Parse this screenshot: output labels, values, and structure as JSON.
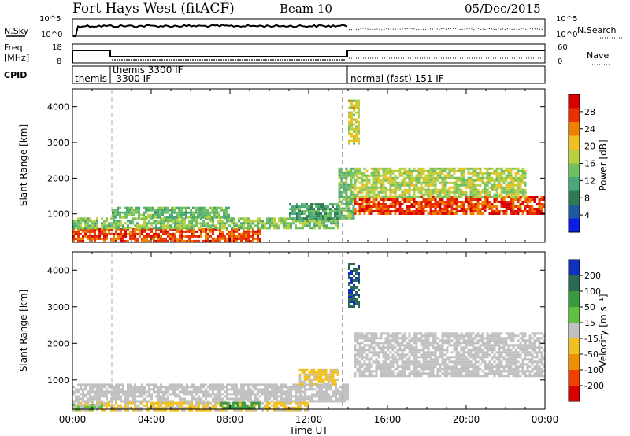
{
  "header": {
    "station": "Fort Hays West (fitACF)",
    "beam": "Beam 10",
    "date": "05/Dec/2015"
  },
  "noise_panel": {
    "left_label": "N.Sky",
    "right_label": "N.Search",
    "left_ticks": [
      "10^5",
      "10^0"
    ],
    "right_ticks": [
      "10^5",
      "10^0"
    ]
  },
  "freq_panel": {
    "left_label_line1": "Freq.",
    "left_label_line2": "[MHz]",
    "right_label": "Nave",
    "left_ticks": [
      "18",
      "8"
    ],
    "right_ticks": [
      "60",
      "0"
    ]
  },
  "cpid_panel": {
    "label": "CPID",
    "segments": [
      "themis",
      "themis 3300 IF",
      "-3300 IF",
      "normal (fast) 151 IF"
    ]
  },
  "power_panel": {
    "ylabel": "Slant Range [km]",
    "cbar_label": "Power [dB]",
    "cbar_ticks": [
      "28",
      "24",
      "20",
      "16",
      "12",
      "8",
      "4"
    ]
  },
  "velocity_panel": {
    "ylabel": "Slant Range [km]",
    "cbar_label": "Velocity [m s⁻¹]",
    "cbar_ticks": [
      "200",
      "100",
      "50",
      "15",
      "-15",
      "-50",
      "-100",
      "-200"
    ]
  },
  "x_axis": {
    "label": "Time UT",
    "ticks": [
      "00:00",
      "04:00",
      "08:00",
      "12:00",
      "16:00",
      "20:00",
      "00:00"
    ]
  },
  "colors": {
    "power_scale": [
      "#0a1ee6",
      "#1e5aa0",
      "#2d7a55",
      "#4aa878",
      "#70c060",
      "#b8d040",
      "#f0c020",
      "#f08000",
      "#e83000",
      "#d80000"
    ],
    "velocity_scale": [
      "#1030c0",
      "#2a6a50",
      "#3a9a40",
      "#60c040",
      "#c0c0c0",
      "#f0c020",
      "#f09000",
      "#f04000",
      "#d80000"
    ]
  },
  "chart_data": [
    {
      "type": "heatmap",
      "name": "power",
      "ylabel": "Slant Range [km]",
      "y_ticks": [
        "1000",
        "2000",
        "3000",
        "4000"
      ],
      "ylim": [
        200,
        4500
      ],
      "x_ticks": [
        "00:00",
        "04:00",
        "08:00",
        "12:00",
        "16:00",
        "20:00",
        "00:00"
      ],
      "xlim_hours": [
        0,
        24
      ],
      "colorbar": {
        "label": "Power [dB]",
        "ticks": [
          28,
          24,
          20,
          16,
          12,
          8,
          4
        ],
        "range": [
          0,
          30
        ]
      },
      "regions": [
        {
          "t0": 0.0,
          "t1": 9.5,
          "r0": 250,
          "r1": 600,
          "power": 26
        },
        {
          "t0": 0.0,
          "t1": 13.5,
          "r0": 600,
          "r1": 900,
          "power": 14
        },
        {
          "t0": 2.0,
          "t1": 8.0,
          "r0": 900,
          "r1": 1200,
          "power": 12
        },
        {
          "t0": 11.0,
          "t1": 13.5,
          "r0": 850,
          "r1": 1300,
          "power": 9
        },
        {
          "t0": 13.5,
          "t1": 14.3,
          "r0": 900,
          "r1": 2300,
          "power": 13
        },
        {
          "t0": 14.3,
          "t1": 24.0,
          "r0": 1000,
          "r1": 1500,
          "power": 27
        },
        {
          "t0": 14.3,
          "t1": 23.0,
          "r0": 1500,
          "r1": 2300,
          "power": 16
        },
        {
          "t0": 14.0,
          "t1": 14.5,
          "r0": 3000,
          "r1": 4200,
          "power": 18
        }
      ]
    },
    {
      "type": "heatmap",
      "name": "velocity",
      "ylabel": "Slant Range [km]",
      "y_ticks": [
        "1000",
        "2000",
        "3000",
        "4000"
      ],
      "ylim": [
        200,
        4500
      ],
      "x_ticks": [
        "00:00",
        "04:00",
        "08:00",
        "12:00",
        "16:00",
        "20:00",
        "00:00"
      ],
      "xlim_hours": [
        0,
        24
      ],
      "colorbar": {
        "label": "Velocity [m s⁻¹]",
        "ticks": [
          200,
          100,
          50,
          15,
          -15,
          -50,
          -100,
          -200
        ],
        "range": [
          -250,
          250
        ]
      },
      "regions": [
        {
          "t0": 0.0,
          "t1": 14.0,
          "r0": 400,
          "r1": 900,
          "velocity": 0
        },
        {
          "t0": 0.0,
          "t1": 12.0,
          "r0": 200,
          "r1": 400,
          "velocity": -40
        },
        {
          "t0": 0.0,
          "t1": 1.5,
          "r0": 200,
          "r1": 350,
          "velocity": 40
        },
        {
          "t0": 7.5,
          "t1": 9.5,
          "r0": 220,
          "r1": 400,
          "velocity": 120
        },
        {
          "t0": 11.5,
          "t1": 13.5,
          "r0": 900,
          "r1": 1300,
          "velocity": -40
        },
        {
          "t0": 14.3,
          "t1": 24.0,
          "r0": 1100,
          "r1": 2300,
          "velocity": 0
        },
        {
          "t0": 14.0,
          "t1": 14.5,
          "r0": 3000,
          "r1": 4200,
          "velocity": 210
        }
      ]
    }
  ]
}
